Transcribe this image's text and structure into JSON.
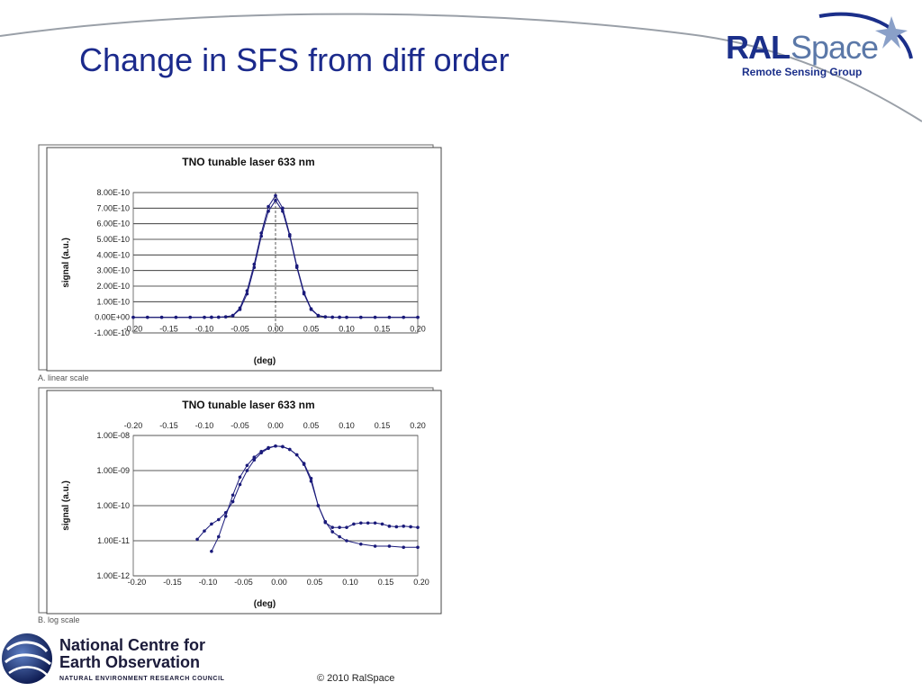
{
  "slide": {
    "title": "Change in SFS from diff order",
    "footer": "© 2010 RalSpace"
  },
  "logo": {
    "ral": "RAL",
    "space": "Space",
    "subtitle": "Remote Sensing Group"
  },
  "nceo": {
    "name_line1": "National Centre for",
    "name_line2": "Earth Observation",
    "subtitle": "NATURAL ENVIRONMENT RESEARCH COUNCIL"
  },
  "colors": {
    "title": "#1b2a8c",
    "series": "#1a1a7a",
    "swoosh": "#9aa0a8"
  },
  "chart_data": [
    {
      "type": "line",
      "title": "TNO tunable laser 633 nm",
      "xlabel": "(deg)",
      "ylabel": "signal (a.u.)",
      "caption": "A. linear scale",
      "xlim": [
        -0.2,
        0.2
      ],
      "ylim": [
        -1e-10,
        8e-10
      ],
      "xticks": [
        "-0.20",
        "-0.15",
        "-0.10",
        "-0.05",
        "0.00",
        "0.05",
        "0.10",
        "0.15",
        "0.20"
      ],
      "yticks": [
        "8.00E-10",
        "7.00E-10",
        "6.00E-10",
        "5.00E-10",
        "4.00E-10",
        "3.00E-10",
        "2.00E-10",
        "1.00E-10",
        "0.00E+00",
        "-1.00E-10"
      ],
      "grid": true,
      "series": [
        {
          "x": [
            -0.2,
            -0.18,
            -0.16,
            -0.14,
            -0.12,
            -0.1,
            -0.09,
            -0.08,
            -0.07,
            -0.06,
            -0.05,
            -0.04,
            -0.03,
            -0.02,
            -0.01,
            0.0,
            0.01,
            0.02,
            0.03,
            0.04,
            0.05,
            0.06,
            0.07,
            0.08,
            0.09,
            0.1,
            0.12,
            0.14,
            0.16,
            0.18,
            0.2
          ],
          "y": [
            0,
            0,
            0,
            0,
            0,
            2e-13,
            5e-13,
            1e-12,
            3e-12,
            1e-11,
            5e-11,
            1.5e-10,
            3.2e-10,
            5.2e-10,
            6.8e-10,
            7.5e-10,
            6.8e-10,
            5.2e-10,
            3.2e-10,
            1.5e-10,
            5e-11,
            1e-11,
            3e-12,
            1e-12,
            5e-13,
            2e-13,
            0,
            0,
            0,
            0,
            0
          ]
        },
        {
          "x": [
            -0.2,
            -0.18,
            -0.16,
            -0.14,
            -0.12,
            -0.1,
            -0.09,
            -0.08,
            -0.07,
            -0.06,
            -0.05,
            -0.04,
            -0.03,
            -0.02,
            -0.01,
            0.0,
            0.01,
            0.02,
            0.03,
            0.04,
            0.05,
            0.06,
            0.07,
            0.08,
            0.09,
            0.1,
            0.12,
            0.14,
            0.16,
            0.18,
            0.2
          ],
          "y": [
            0,
            0,
            0,
            0,
            0,
            2e-13,
            5e-13,
            1e-12,
            3e-12,
            1.2e-11,
            6e-11,
            1.7e-10,
            3.4e-10,
            5.4e-10,
            7.1e-10,
            7.8e-10,
            7e-10,
            5.3e-10,
            3.3e-10,
            1.6e-10,
            5.5e-11,
            1.2e-11,
            3e-12,
            1e-12,
            5e-13,
            2e-13,
            0,
            0,
            0,
            0,
            0
          ]
        }
      ]
    },
    {
      "type": "line",
      "title": "TNO tunable laser 633 nm",
      "xlabel": "(deg)",
      "ylabel": "signal (a.u.)",
      "caption": "B. log scale",
      "scale": "log",
      "xlim": [
        -0.2,
        0.2
      ],
      "ylim": [
        1e-12,
        1e-08
      ],
      "xticks": [
        "-0.20",
        "-0.15",
        "-0.10",
        "-0.05",
        "0.00",
        "0.05",
        "0.10",
        "0.15",
        "0.20"
      ],
      "yticks": [
        "1.00E-08",
        "1.00E-09",
        "1.00E-10",
        "1.00E-11",
        "1.00E-12"
      ],
      "grid": true,
      "series": [
        {
          "x": [
            -0.11,
            -0.1,
            -0.09,
            -0.08,
            -0.07,
            -0.06,
            -0.05,
            -0.04,
            -0.03,
            -0.02,
            -0.01,
            0.0,
            0.01,
            0.02,
            0.03,
            0.04,
            0.05,
            0.06,
            0.07,
            0.08,
            0.09,
            0.1,
            0.11,
            0.12,
            0.13,
            0.14,
            0.15,
            0.16,
            0.17,
            0.18,
            0.19,
            0.2
          ],
          "y": [
            1.1e-11,
            1.9e-11,
            3e-11,
            4e-11,
            6.3e-11,
            1.3e-10,
            4e-10,
            1e-09,
            2e-09,
            3.2e-09,
            4.3e-09,
            5e-09,
            4.8e-09,
            4e-09,
            2.8e-09,
            1.6e-09,
            6e-10,
            1e-10,
            3.3e-11,
            2.4e-11,
            2.4e-11,
            2.4e-11,
            3e-11,
            3.2e-11,
            3.2e-11,
            3.2e-11,
            3e-11,
            2.6e-11,
            2.5e-11,
            2.6e-11,
            2.5e-11,
            2.4e-11
          ]
        },
        {
          "x": [
            -0.09,
            -0.08,
            -0.07,
            -0.06,
            -0.05,
            -0.04,
            -0.03,
            -0.02,
            -0.01,
            0.0,
            0.01,
            0.02,
            0.03,
            0.04,
            0.05,
            0.06,
            0.07,
            0.08,
            0.09,
            0.1,
            0.12,
            0.14,
            0.16,
            0.18,
            0.2
          ],
          "y": [
            5e-12,
            1.3e-11,
            5e-11,
            2e-10,
            6.5e-10,
            1.4e-09,
            2.4e-09,
            3.5e-09,
            4.5e-09,
            5e-09,
            4.8e-09,
            4e-09,
            2.8e-09,
            1.5e-09,
            5e-10,
            1e-10,
            3.5e-11,
            1.8e-11,
            1.3e-11,
            1e-11,
            8e-12,
            7e-12,
            7e-12,
            6.5e-12,
            6.5e-12
          ]
        }
      ]
    }
  ]
}
